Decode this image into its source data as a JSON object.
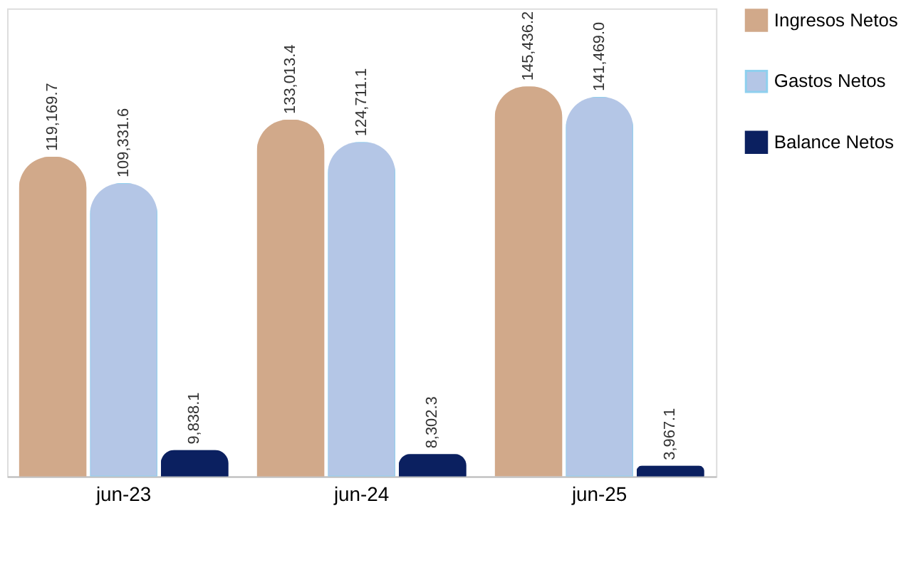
{
  "chart_data": {
    "type": "bar",
    "categories": [
      "jun-23",
      "jun-24",
      "jun-25"
    ],
    "series": [
      {
        "name": "Ingresos Netos",
        "color": "#d1a98a",
        "values": [
          119169.7,
          133013.4,
          145436.2
        ],
        "value_labels": [
          "119,169.7",
          "133,013.4",
          "145,436.2"
        ]
      },
      {
        "name": "Gastos Netos",
        "color": "#b4c6e6",
        "values": [
          109331.6,
          124711.1,
          141469.0
        ],
        "value_labels": [
          "109,331.6",
          "124,711.1",
          "141,469.0"
        ]
      },
      {
        "name": "Balance Netos",
        "color": "#0b2060",
        "values": [
          9838.1,
          8302.3,
          3967.1
        ],
        "value_labels": [
          "9,838.1",
          "8,302.3",
          "3,967.1"
        ]
      }
    ],
    "legend": "right",
    "grid": false
  }
}
